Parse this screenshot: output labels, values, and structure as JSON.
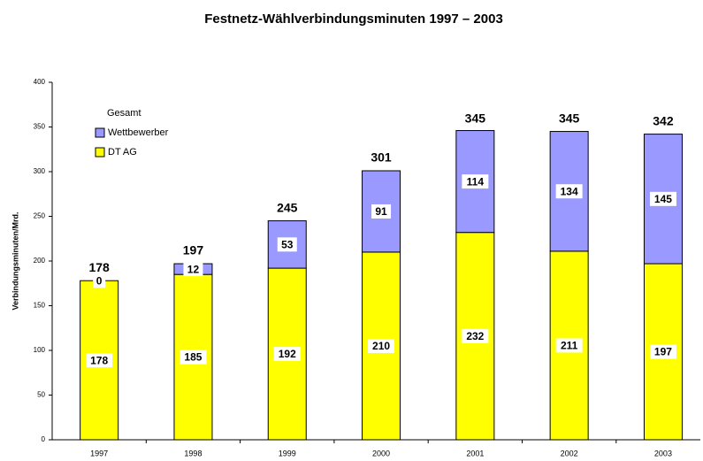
{
  "chart_data": {
    "type": "stacked_bar",
    "title": "Festnetz-Wählverbindungsminuten 1997 – 2003",
    "y_label": "Verbindungsminuten/Mrd.",
    "legend_title": "Gesamt",
    "categories": [
      "1997",
      "1998",
      "1999",
      "2000",
      "2001",
      "2002",
      "2003"
    ],
    "series": [
      {
        "name": "DT AG",
        "color": "#ffff00",
        "values": [
          178,
          185,
          192,
          210,
          232,
          211,
          197
        ]
      },
      {
        "name": "Wettbewerber",
        "color": "#9999ff",
        "values": [
          0,
          12,
          53,
          91,
          114,
          134,
          145
        ]
      }
    ],
    "totals": [
      178,
      197,
      245,
      301,
      345,
      345,
      342
    ],
    "ylim": [
      0,
      400
    ],
    "yticks": [
      0,
      50,
      100,
      150,
      200,
      250,
      300,
      350,
      400
    ],
    "legend": "top-left"
  }
}
